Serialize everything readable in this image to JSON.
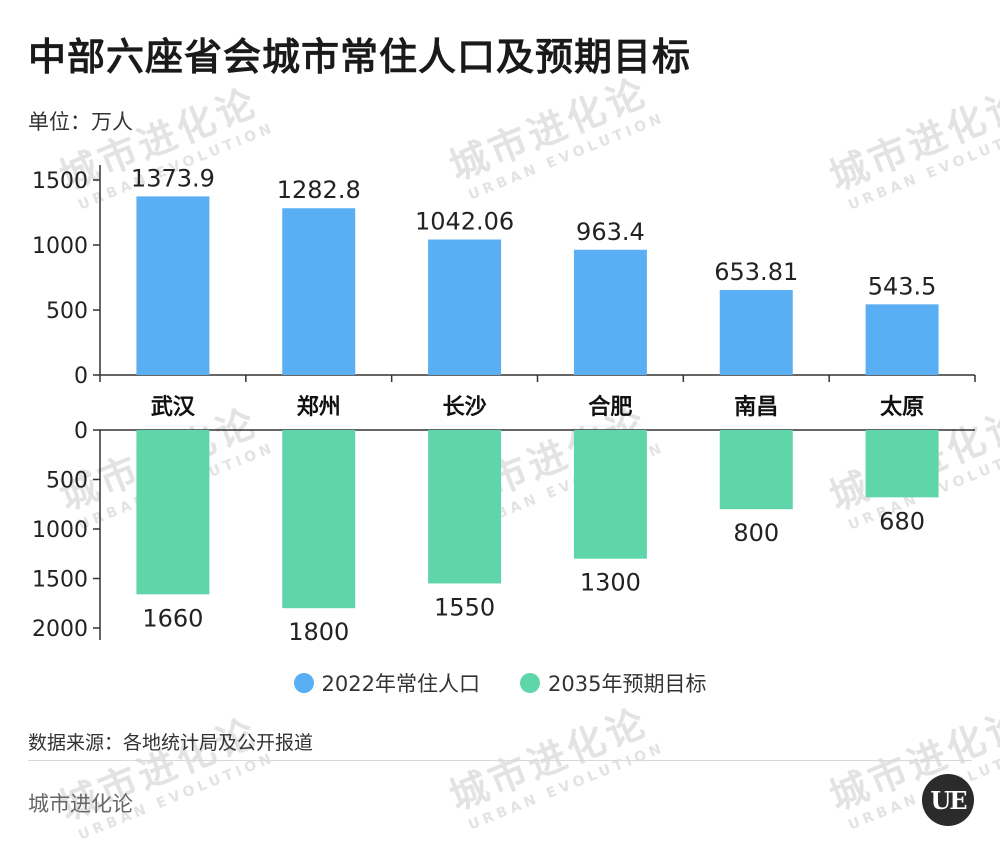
{
  "title": "中部六座省会城市常住人口及预期目标",
  "unit": "单位：万人",
  "watermark": {
    "cn": "城市进化论",
    "en": "URBAN EVOLUTION"
  },
  "source": "数据来源：各地统计局及公开报道",
  "brand": "城市进化论",
  "logo_text": "UE",
  "colors": {
    "series_2022": "#5aaef3",
    "series_2035": "#5fd6a9",
    "axis": "#333333"
  },
  "chart_data": {
    "type": "bar",
    "categories": [
      "武汉",
      "郑州",
      "长沙",
      "合肥",
      "南昌",
      "太原"
    ],
    "series": [
      {
        "name": "2022年常住人口",
        "values": [
          1373.9,
          1282.8,
          1042.06,
          963.4,
          653.81,
          543.5
        ],
        "labels": [
          "1373.9",
          "1282.8",
          "1042.06",
          "963.4",
          "653.81",
          "543.5"
        ]
      },
      {
        "name": "2035年预期目标",
        "values": [
          1660,
          1800,
          1550,
          1300,
          800,
          680
        ],
        "labels": [
          "1660",
          "1800",
          "1550",
          "1300",
          "800",
          "680"
        ]
      }
    ],
    "top_axis": {
      "ticks": [
        0,
        500,
        1000,
        1500
      ],
      "range": [
        0,
        1500
      ]
    },
    "bottom_axis": {
      "ticks": [
        0,
        500,
        1000,
        1500,
        2000
      ],
      "range": [
        0,
        2000
      ],
      "inverted": true
    }
  }
}
